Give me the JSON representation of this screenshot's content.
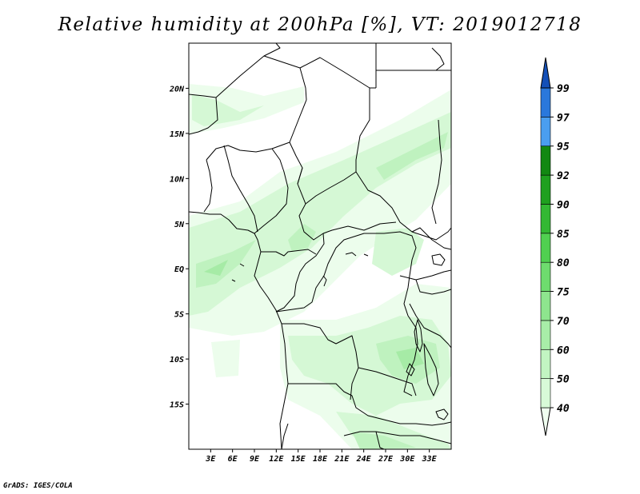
{
  "title": "Relative humidity at 200hPa [%], VT: 2019012718",
  "credit": "GrADS: IGES/COLA",
  "map": {
    "lon_range": [
      0,
      36
    ],
    "lat_range": [
      -20,
      25
    ],
    "lat_ticks": [
      {
        "value": 20,
        "label": "20N"
      },
      {
        "value": 15,
        "label": "15N"
      },
      {
        "value": 10,
        "label": "10N"
      },
      {
        "value": 5,
        "label": "5N"
      },
      {
        "value": 0,
        "label": "EQ"
      },
      {
        "value": -5,
        "label": "5S"
      },
      {
        "value": -10,
        "label": "10S"
      },
      {
        "value": -15,
        "label": "15S"
      }
    ],
    "lon_ticks": [
      {
        "value": 3,
        "label": "3E"
      },
      {
        "value": 6,
        "label": "6E"
      },
      {
        "value": 9,
        "label": "9E"
      },
      {
        "value": 12,
        "label": "12E"
      },
      {
        "value": 15,
        "label": "15E"
      },
      {
        "value": 18,
        "label": "18E"
      },
      {
        "value": 21,
        "label": "21E"
      },
      {
        "value": 24,
        "label": "24E"
      },
      {
        "value": 27,
        "label": "27E"
      },
      {
        "value": 30,
        "label": "30E"
      },
      {
        "value": 33,
        "label": "33E"
      }
    ]
  },
  "colorbar": {
    "labels": [
      "40",
      "50",
      "60",
      "70",
      "75",
      "80",
      "85",
      "90",
      "92",
      "95",
      "97",
      "99"
    ],
    "colors": [
      "#f0fff0",
      "#d8fad8",
      "#c2f5c2",
      "#a8eda8",
      "#8ee58e",
      "#6edc6e",
      "#50d050",
      "#33b833",
      "#1fa01f",
      "#128812",
      "#4a9ef0",
      "#2a78dc",
      "#1450b8"
    ]
  }
}
